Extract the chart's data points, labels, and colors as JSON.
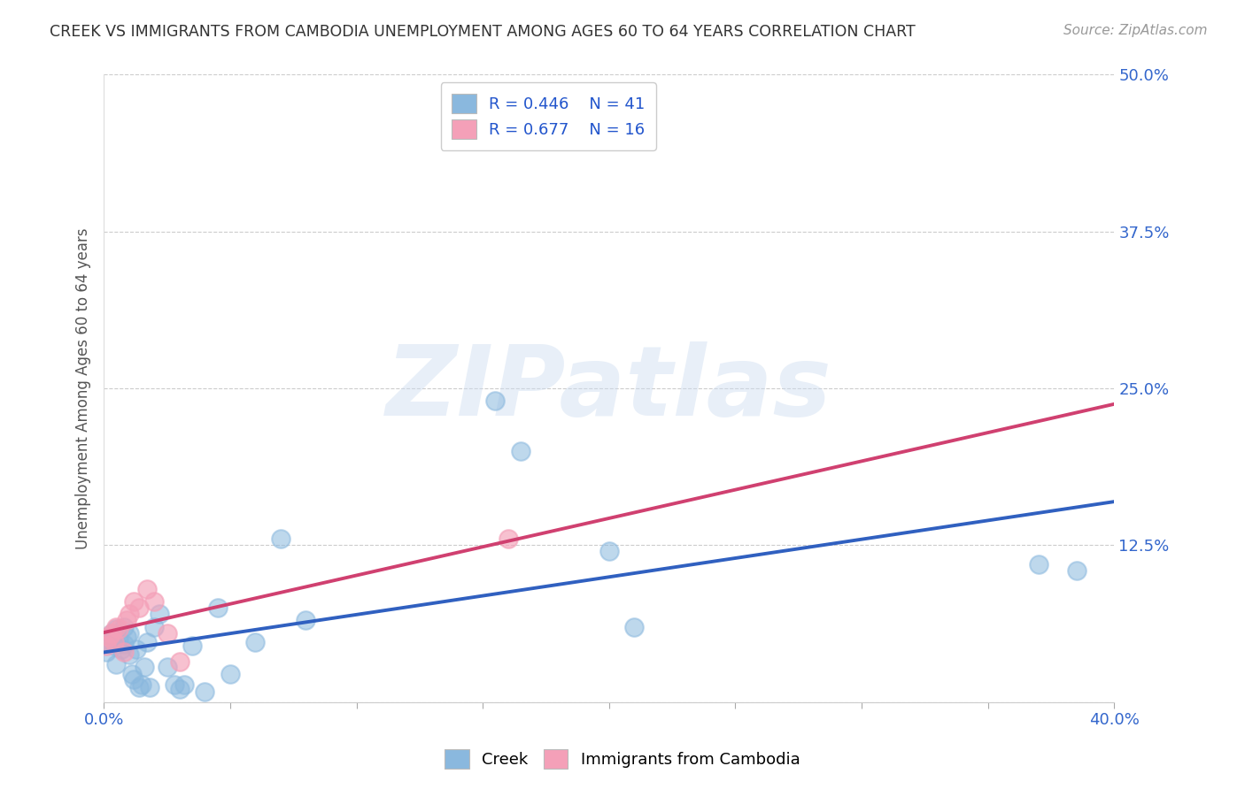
{
  "title": "CREEK VS IMMIGRANTS FROM CAMBODIA UNEMPLOYMENT AMONG AGES 60 TO 64 YEARS CORRELATION CHART",
  "source": "Source: ZipAtlas.com",
  "ylabel": "Unemployment Among Ages 60 to 64 years",
  "xlim": [
    0.0,
    0.4
  ],
  "ylim": [
    0.0,
    0.5
  ],
  "xticks": [
    0.0,
    0.05,
    0.1,
    0.15,
    0.2,
    0.25,
    0.3,
    0.35,
    0.4
  ],
  "yticks": [
    0.0,
    0.125,
    0.25,
    0.375,
    0.5
  ],
  "xtick_labels": [
    "0.0%",
    "",
    "",
    "",
    "",
    "",
    "",
    "",
    "40.0%"
  ],
  "ytick_labels": [
    "",
    "12.5%",
    "25.0%",
    "37.5%",
    "50.0%"
  ],
  "creek_color": "#8ab8de",
  "cambodia_color": "#f4a0b8",
  "creek_line_color": "#3060c0",
  "cambodia_line_color": "#d04070",
  "watermark": "ZIPatlas",
  "creek_x": [
    0.001,
    0.002,
    0.003,
    0.003,
    0.004,
    0.005,
    0.005,
    0.006,
    0.007,
    0.008,
    0.008,
    0.009,
    0.01,
    0.01,
    0.011,
    0.012,
    0.013,
    0.014,
    0.015,
    0.016,
    0.017,
    0.018,
    0.02,
    0.022,
    0.025,
    0.028,
    0.03,
    0.032,
    0.035,
    0.04,
    0.045,
    0.05,
    0.06,
    0.07,
    0.08,
    0.155,
    0.165,
    0.2,
    0.21,
    0.37,
    0.385
  ],
  "creek_y": [
    0.04,
    0.048,
    0.052,
    0.055,
    0.045,
    0.03,
    0.058,
    0.05,
    0.042,
    0.046,
    0.06,
    0.052,
    0.038,
    0.055,
    0.022,
    0.018,
    0.042,
    0.012,
    0.014,
    0.028,
    0.048,
    0.012,
    0.06,
    0.07,
    0.028,
    0.014,
    0.01,
    0.014,
    0.045,
    0.008,
    0.075,
    0.022,
    0.048,
    0.13,
    0.065,
    0.24,
    0.2,
    0.12,
    0.06,
    0.11,
    0.105
  ],
  "cambodia_x": [
    0.001,
    0.002,
    0.003,
    0.004,
    0.005,
    0.006,
    0.008,
    0.009,
    0.01,
    0.012,
    0.014,
    0.017,
    0.02,
    0.025,
    0.03,
    0.16
  ],
  "cambodia_y": [
    0.045,
    0.052,
    0.055,
    0.048,
    0.06,
    0.058,
    0.04,
    0.065,
    0.07,
    0.08,
    0.075,
    0.09,
    0.08,
    0.055,
    0.032,
    0.13
  ]
}
